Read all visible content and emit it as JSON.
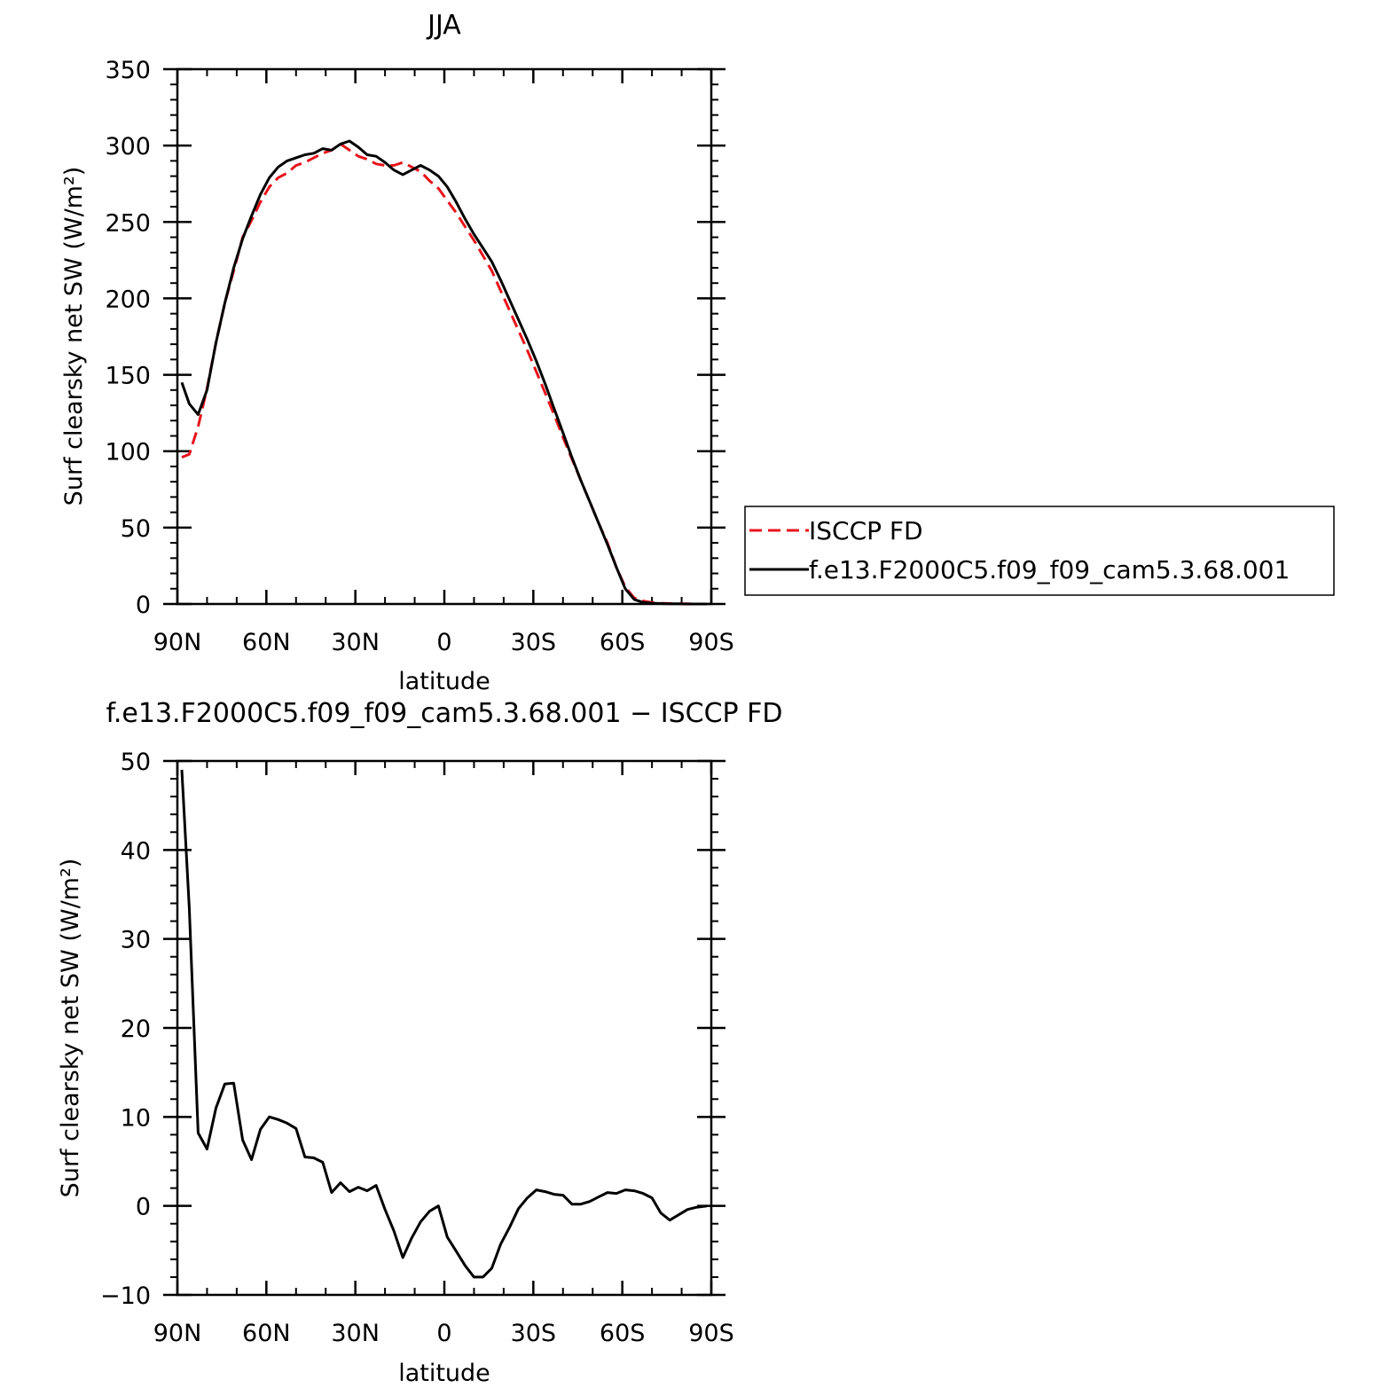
{
  "chart_data": [
    {
      "type": "line",
      "title": "JJA",
      "xlabel": "latitude",
      "ylabel": "Surf clearsky net SW (W/m²)",
      "xlim": [
        90,
        -90
      ],
      "ylim": [
        0,
        350
      ],
      "xticks": [
        90,
        60,
        30,
        0,
        -30,
        -60,
        -90
      ],
      "xtick_labels": [
        "90N",
        "60N",
        "30N",
        "0",
        "30S",
        "60S",
        "90S"
      ],
      "yticks": [
        0,
        50,
        100,
        150,
        200,
        250,
        300,
        350
      ],
      "ytick_labels": [
        "0",
        "50",
        "100",
        "150",
        "200",
        "250",
        "300",
        "350"
      ],
      "legend": "right-middle",
      "colors": {
        "isccp": "#e8141c",
        "model": "#000000"
      },
      "series": [
        {
          "name": "ISCCP FD",
          "style": "dashed",
          "x": [
            88.5,
            86,
            83,
            80,
            77,
            74,
            71,
            68,
            65,
            62,
            59,
            56,
            53,
            50,
            47,
            44,
            41,
            38,
            35,
            32,
            29,
            26,
            23,
            20,
            17,
            14,
            11,
            8,
            5,
            2,
            -1,
            -4,
            -7,
            -10,
            -13,
            -16,
            -19,
            -22,
            -25,
            -28,
            -31,
            -34,
            -37,
            -40,
            -43,
            -46,
            -49,
            -52,
            -55,
            -58,
            -61,
            -64,
            -67,
            -70,
            -73,
            -76,
            -79,
            -82,
            -85,
            -88.5
          ],
          "y": [
            96,
            98,
            116,
            141,
            171,
            197,
            218,
            240,
            251,
            263,
            273,
            279,
            282,
            287,
            289,
            292,
            295,
            297,
            301,
            297,
            293,
            291,
            288,
            287,
            287,
            289,
            286,
            283,
            277,
            272,
            264,
            256,
            247,
            238,
            228,
            218,
            205,
            192,
            179,
            166,
            152,
            138,
            124,
            109,
            95,
            81,
            67,
            53,
            40,
            24,
            11,
            4,
            2,
            1,
            0.5,
            0.3,
            0.2,
            0.1,
            0,
            0
          ]
        },
        {
          "name": "f.e13.F2000C5.f09_f09_cam5.3.68.001",
          "style": "solid",
          "x": [
            88.5,
            86,
            83,
            80,
            77,
            74,
            71,
            68,
            65,
            62,
            59,
            56,
            53,
            50,
            47,
            44,
            41,
            38,
            35,
            32,
            29,
            26,
            23,
            20,
            17,
            14,
            11,
            8,
            5,
            2,
            -1,
            -4,
            -7,
            -10,
            -13,
            -16,
            -19,
            -22,
            -25,
            -28,
            -31,
            -34,
            -37,
            -40,
            -43,
            -46,
            -49,
            -52,
            -55,
            -58,
            -61,
            -64,
            -67,
            -70,
            -73,
            -76,
            -79,
            -82,
            -85,
            -88.5
          ],
          "y": [
            145,
            131,
            124,
            140,
            171,
            197,
            220,
            239,
            254,
            268,
            279,
            286,
            290,
            292,
            294,
            295,
            298,
            297,
            301,
            303,
            299,
            294,
            293,
            289,
            284,
            281,
            284,
            287,
            284,
            280,
            273,
            263,
            252,
            242,
            233,
            224,
            212,
            199,
            186,
            173,
            159,
            144,
            128,
            112,
            96,
            81,
            67,
            53,
            39,
            24,
            10,
            3,
            1,
            0.5,
            0.3,
            0.2,
            0.1,
            0,
            0,
            0
          ]
        }
      ]
    },
    {
      "type": "line",
      "title": "f.e13.F2000C5.f09_f09_cam5.3.68.001 − ISCCP FD",
      "xlabel": "latitude",
      "ylabel": "Surf clearsky net SW (W/m²)",
      "xlim": [
        90,
        -90
      ],
      "ylim": [
        -10,
        50
      ],
      "xticks": [
        90,
        60,
        30,
        0,
        -30,
        -60,
        -90
      ],
      "xtick_labels": [
        "90N",
        "60N",
        "30N",
        "0",
        "30S",
        "60S",
        "90S"
      ],
      "yticks": [
        -10,
        0,
        10,
        20,
        30,
        40,
        50
      ],
      "ytick_labels": [
        "−10",
        "0",
        "10",
        "20",
        "30",
        "40",
        "50"
      ],
      "colors": {
        "model": "#000000"
      },
      "series": [
        {
          "style": "solid",
          "x": [
            88.5,
            86,
            83,
            80,
            77,
            74,
            71,
            68,
            65,
            62,
            59,
            56,
            53,
            50,
            47,
            44,
            41,
            38,
            35,
            32,
            29,
            26,
            23,
            20,
            17,
            14,
            11,
            8,
            5,
            2,
            -1,
            -4,
            -7,
            -10,
            -13,
            -16,
            -19,
            -22,
            -25,
            -28,
            -31,
            -34,
            -37,
            -40,
            -43,
            -46,
            -49,
            -52,
            -55,
            -58,
            -61,
            -64,
            -67,
            -70,
            -73,
            -76,
            -79,
            -82,
            -85,
            -88.5
          ],
          "y": [
            49,
            33.5,
            8.2,
            6.4,
            11,
            13.7,
            13.8,
            7.4,
            5.2,
            8.6,
            10,
            9.7,
            9.3,
            8.7,
            5.5,
            5.4,
            4.9,
            1.5,
            2.6,
            1.6,
            2.1,
            1.7,
            2.3,
            -0.4,
            -2.8,
            -5.8,
            -3.6,
            -1.8,
            -0.6,
            0,
            -3.5,
            -5.1,
            -6.7,
            -8,
            -8,
            -7,
            -4.3,
            -2.4,
            -0.3,
            0.9,
            1.8,
            1.6,
            1.3,
            1.2,
            0.2,
            0.2,
            0.5,
            1,
            1.5,
            1.4,
            1.8,
            1.7,
            1.4,
            0.9,
            -0.8,
            -1.6,
            -1,
            -0.4,
            -0.15,
            0
          ]
        }
      ]
    }
  ]
}
